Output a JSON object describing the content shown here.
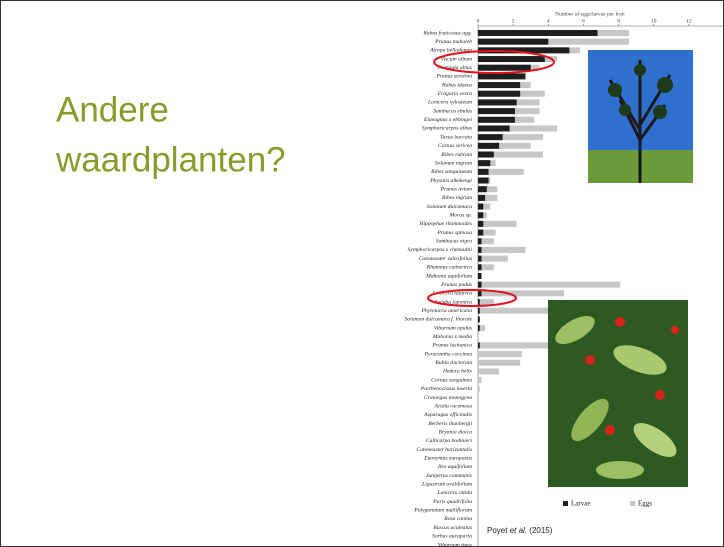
{
  "slide_title_lines": [
    "Andere",
    "waardplanten?"
  ],
  "citation": [
    "Poyet",
    "et al.",
    "(2015)"
  ],
  "chart_data": {
    "type": "bar",
    "orientation": "horizontal",
    "overlay": true,
    "x_label": "Number of eggs/larvae per fruit",
    "categories": [
      "Rubus fruticosus agg.",
      "Prunus mahaleb",
      "Atropa belladonna",
      "Viscum album",
      "Frangula alnus",
      "Prunus serotina",
      "Rubus idaeus",
      "Fragaria vesca",
      "Lonicera xylosteum",
      "Sambucus ebulus",
      "Elaeagnus x ebbingei",
      "Symphoricarpos albus",
      "Taxus baccata",
      "Cornus sericea",
      "Ribes rubrum",
      "Solanum nigrum",
      "Ribes sanguineum",
      "Physalis alkekengi",
      "Prunus avium",
      "Ribes nigrum",
      "Solanum dulcamara",
      "Morus sp.",
      "Hippophae rhamnoides",
      "Prunus spinosa",
      "Sambucus nigra",
      "Symphoricarpos x chenaultii",
      "Cotoneaster salicifolius",
      "Rhamnus cathartica",
      "Mahonia aquifolium",
      "Prunus padus",
      "Lonicera tatarica",
      "Aucuba japonica",
      "Phytolacca americana",
      "Solanum dulcamara f. litorale",
      "Viburnum opulus",
      "Mahonia x media",
      "Prunus lusitanica",
      "Pyracantha coccinea",
      "Rubia tinctorum",
      "Hedera helix",
      "Cornus sanguinea",
      "Parthenocissus inserta",
      "Crataegus monogyna",
      "Aralia racemosa",
      "Asparagus officinalis",
      "Berberis thunbergii",
      "Bryonia dioica",
      "Callicarpa bodinieri",
      "Cotoneaster horizontalis",
      "Euonymus europaeus",
      "Ilex aquifolium",
      "Juniperus communis",
      "Ligustrum ovalifolium",
      "Lonicera nitida",
      "Paris quadrifolia",
      "Polygonatum multiflorum",
      "Rosa canina",
      "Ruscus aculeatus",
      "Sorbus aucuparia",
      "Viburnum tinus"
    ],
    "series": [
      {
        "name": "Eggs",
        "color": "#c6c6c6",
        "values": [
          8.6,
          8.6,
          5.8,
          4.5,
          3.5,
          2.7,
          3.0,
          3.8,
          3.5,
          3.5,
          3.2,
          4.5,
          3.7,
          3.0,
          3.7,
          1.0,
          2.6,
          0.7,
          1.1,
          1.1,
          0.7,
          0.5,
          2.2,
          1.0,
          0.9,
          2.7,
          1.7,
          0.9,
          0.2,
          8.1,
          4.9,
          0.9,
          4.0,
          0.1,
          0.4,
          0,
          5.0,
          2.5,
          2.4,
          1.2,
          0.2,
          0.1,
          0,
          0,
          0,
          0,
          0,
          0,
          0,
          0,
          0,
          0,
          0,
          0,
          0,
          0,
          0,
          0,
          0,
          0
        ]
      },
      {
        "name": "Larvae",
        "color": "#1e1e1e",
        "values": [
          6.8,
          4.0,
          5.2,
          3.8,
          3.0,
          2.7,
          2.4,
          2.4,
          2.2,
          2.1,
          2.1,
          1.8,
          1.4,
          1.2,
          0.9,
          0.7,
          0.6,
          0.6,
          0.5,
          0.4,
          0.3,
          0.3,
          0.3,
          0.3,
          0.2,
          0.2,
          0.2,
          0.2,
          0.2,
          0.2,
          0.2,
          0.1,
          0.1,
          0.1,
          0.1,
          0,
          0.1,
          0,
          0,
          0,
          0,
          0,
          0,
          0,
          0,
          0,
          0,
          0,
          0,
          0,
          0,
          0,
          0,
          0,
          0,
          0,
          0,
          0,
          0,
          0
        ]
      }
    ],
    "xlim": [
      0,
      14
    ],
    "xticks": [
      0,
      2,
      4,
      6,
      8,
      10,
      12
    ]
  }
}
